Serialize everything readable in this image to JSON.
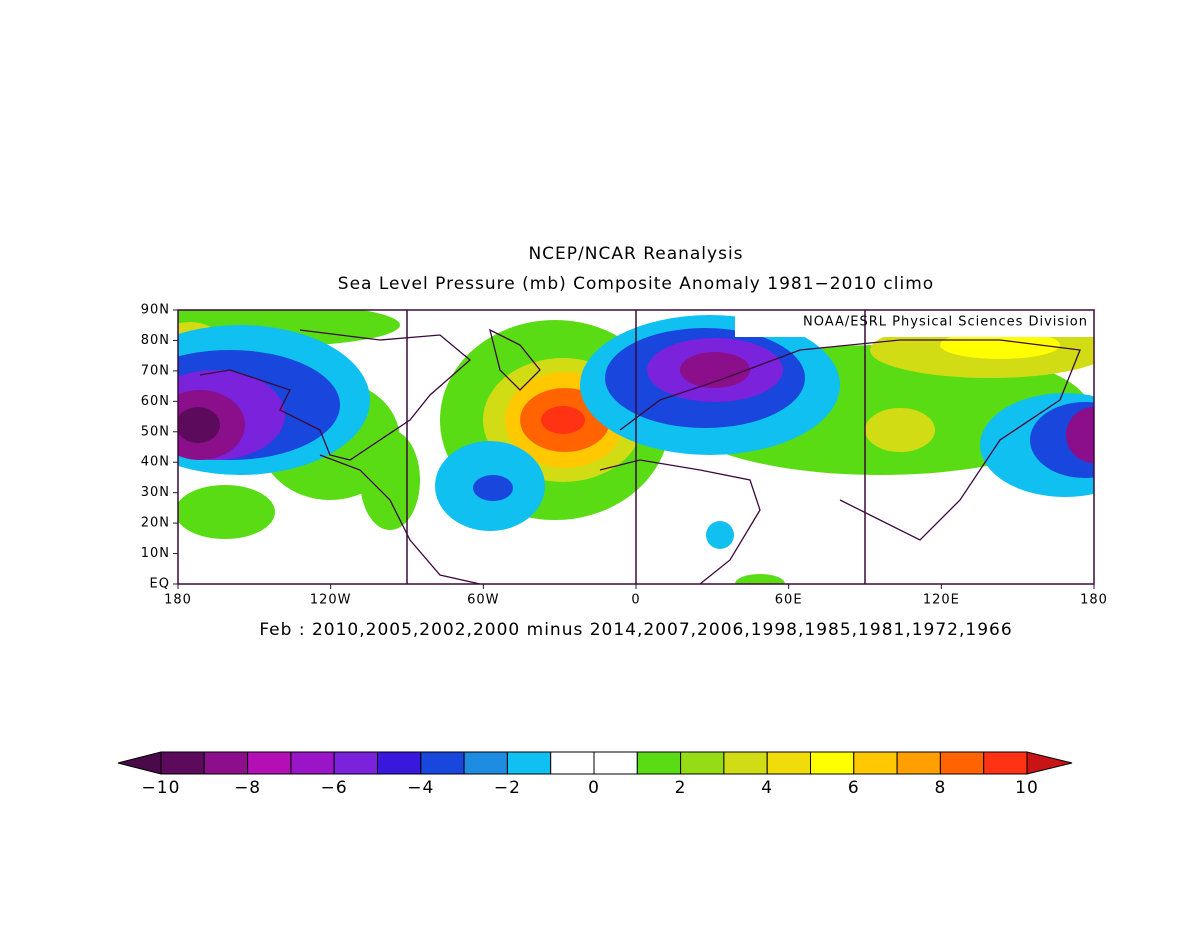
{
  "title": "NCEP/NCAR Reanalysis",
  "subtitle": "Sea Level Pressure (mb) Composite Anomaly 1981−2010 climo",
  "credit": "NOAA/ESRL Physical Sciences Division",
  "footer": "Feb : 2010,2005,2002,2000 minus 2014,2007,2006,1998,1985,1981,1972,1966",
  "map": {
    "lat_ticks": [
      {
        "value": 90,
        "label": "90N"
      },
      {
        "value": 80,
        "label": "80N"
      },
      {
        "value": 70,
        "label": "70N"
      },
      {
        "value": 60,
        "label": "60N"
      },
      {
        "value": 50,
        "label": "50N"
      },
      {
        "value": 40,
        "label": "40N"
      },
      {
        "value": 30,
        "label": "30N"
      },
      {
        "value": 20,
        "label": "20N"
      },
      {
        "value": 10,
        "label": "10N"
      },
      {
        "value": 0,
        "label": "EQ"
      }
    ],
    "lon_ticks": [
      {
        "value": -180,
        "label": "180"
      },
      {
        "value": -120,
        "label": "120W"
      },
      {
        "value": -60,
        "label": "60W"
      },
      {
        "value": 0,
        "label": "0"
      },
      {
        "value": 60,
        "label": "60E"
      },
      {
        "value": 120,
        "label": "120E"
      },
      {
        "value": 180,
        "label": "180"
      }
    ]
  },
  "colorbar": {
    "under_color": "#4a0a4a",
    "over_color": "#c81414",
    "colors": [
      "#5c0a5c",
      "#8b0f8b",
      "#b40fb4",
      "#9a15c8",
      "#7a22dc",
      "#3a17dc",
      "#1946dc",
      "#1e8ce0",
      "#0fc0f0",
      "#ffffff",
      "#ffffff",
      "#5adc14",
      "#96dc14",
      "#d2dc14",
      "#f0dc0a",
      "#ffff00",
      "#ffc800",
      "#ffa000",
      "#ff6400",
      "#ff3214"
    ],
    "ticks": [
      {
        "value": -10,
        "label": "−10"
      },
      {
        "value": -8,
        "label": "−8"
      },
      {
        "value": -6,
        "label": "−6"
      },
      {
        "value": -4,
        "label": "−4"
      },
      {
        "value": -2,
        "label": "−2"
      },
      0,
      2,
      4,
      6,
      8,
      10
    ]
  }
}
